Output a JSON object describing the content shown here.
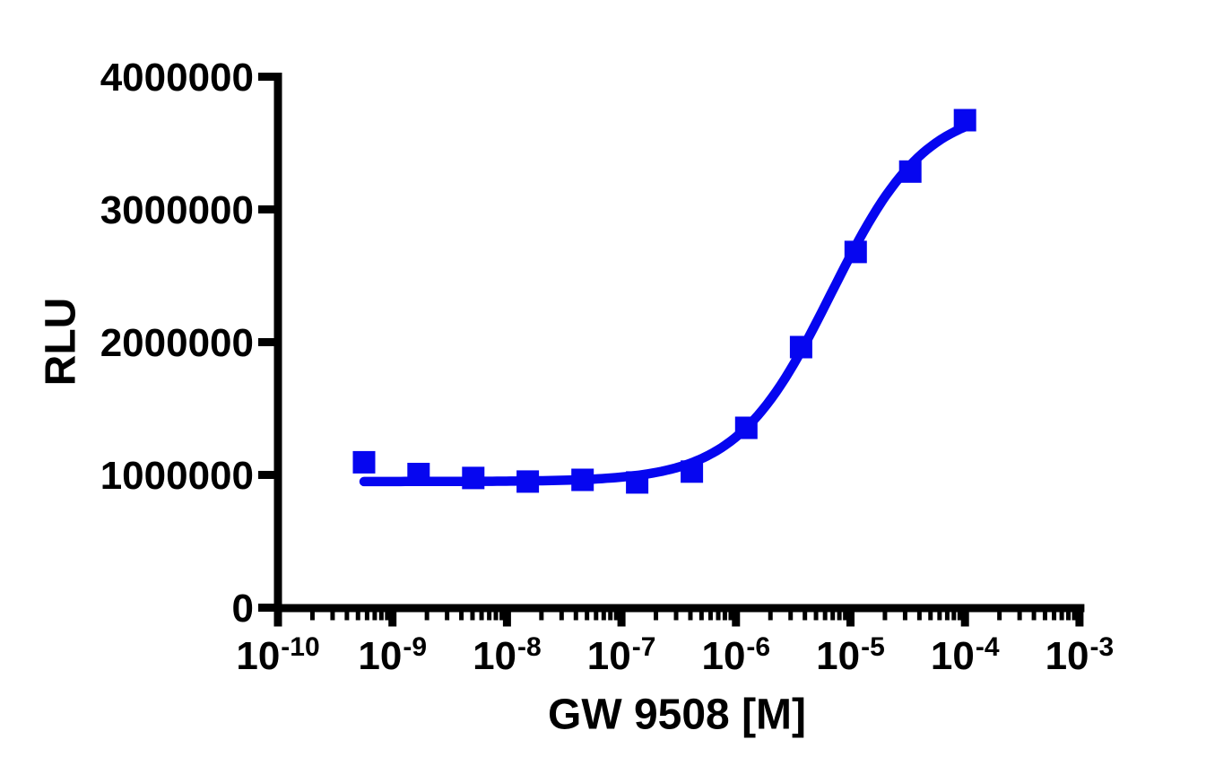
{
  "colors": {
    "curve_blue": "#0606f0",
    "axis_black": "#000000",
    "background": "#ffffff"
  },
  "chart_data": {
    "type": "scatter",
    "title": "",
    "xlabel": "GW 9508 [M]",
    "ylabel": "RLU",
    "x_scale": "log10",
    "legend": "none",
    "grid": "off",
    "x_axis": {
      "min_exponent": -10,
      "max_exponent": -3,
      "tick_base": "10",
      "tick_exponents": [
        "-10",
        "-9",
        "-8",
        "-7",
        "-6",
        "-5",
        "-4",
        "-3"
      ],
      "minor_ticks": "log positions 2-9 within each decade"
    },
    "y_axis": {
      "min": 0,
      "max": 4000000,
      "tick_values": [
        0,
        1000000,
        2000000,
        3000000,
        4000000
      ],
      "tick_labels": [
        "0",
        "1000000",
        "2000000",
        "3000000",
        "4000000"
      ]
    },
    "series": [
      {
        "marker": "square",
        "color": "#0606f0",
        "points": [
          {
            "conc": 5.65e-10,
            "rlu": 1095000
          },
          {
            "conc": 1.69e-09,
            "rlu": 1007000
          },
          {
            "conc": 5.08e-09,
            "rlu": 977000
          },
          {
            "conc": 1.52e-08,
            "rlu": 950000
          },
          {
            "conc": 4.57e-08,
            "rlu": 963000
          },
          {
            "conc": 1.37e-07,
            "rlu": 943000
          },
          {
            "conc": 4.12e-07,
            "rlu": 1025000
          },
          {
            "conc": 1.23e-06,
            "rlu": 1355000
          },
          {
            "conc": 3.7e-06,
            "rlu": 1963000
          },
          {
            "conc": 1.11e-05,
            "rlu": 2680000
          },
          {
            "conc": 3.33e-05,
            "rlu": 3285000
          },
          {
            "conc": 0.0001,
            "rlu": 3672000
          }
        ]
      }
    ],
    "fit_curve": {
      "model": "four-parameter logistic",
      "bottom": 950000,
      "top": 3780000,
      "log_ec50": -5.17,
      "hill_slope": 1.05,
      "color": "#0606f0",
      "x_start_exponent": -9.248,
      "x_end_exponent": -4.0
    }
  }
}
